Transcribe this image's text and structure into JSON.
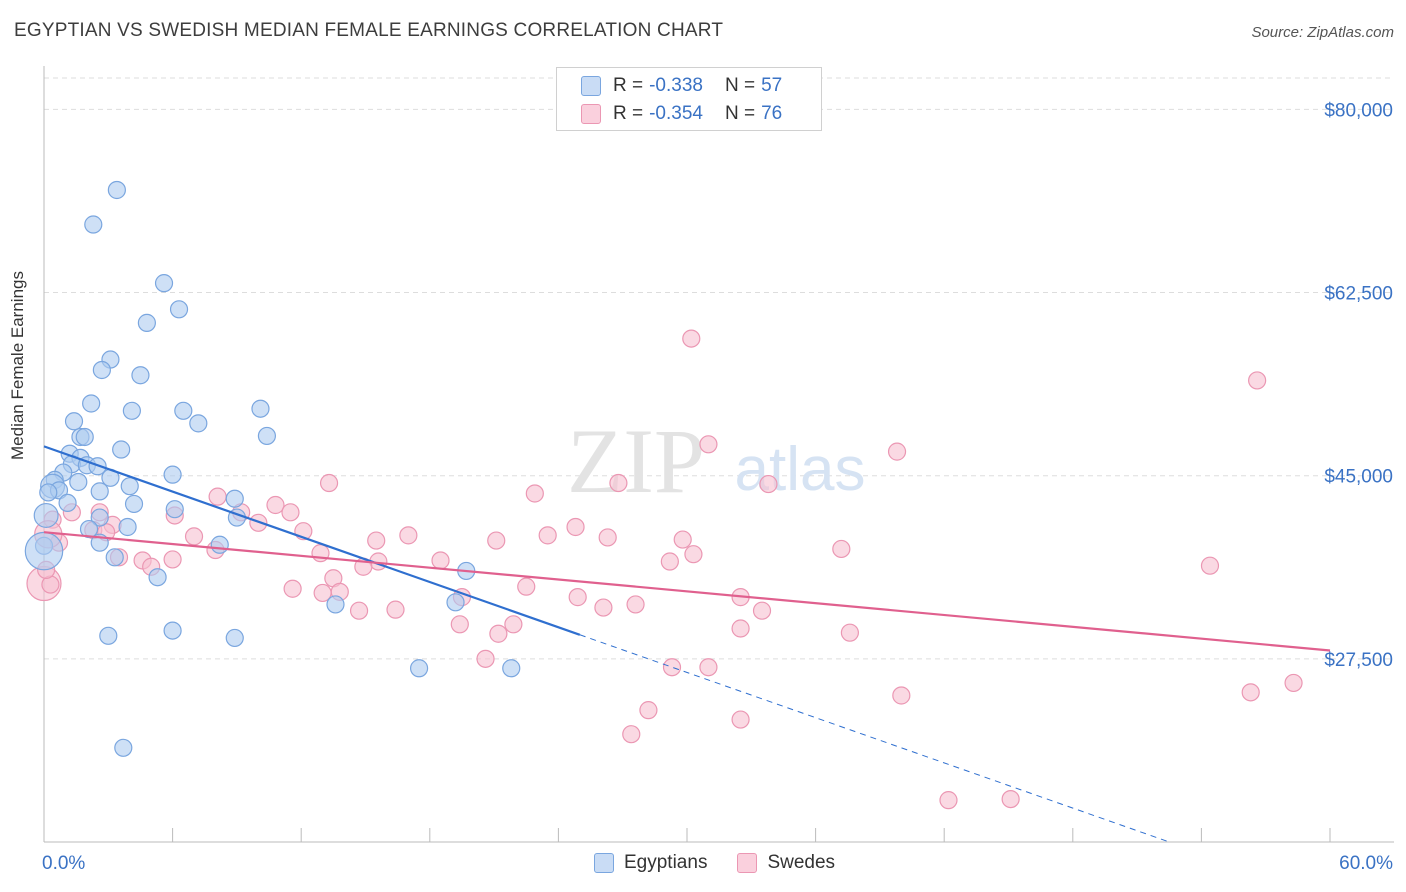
{
  "header": {
    "title": "EGYPTIAN VS SWEDISH MEDIAN FEMALE EARNINGS CORRELATION CHART",
    "source": "Source: ZipAtlas.com"
  },
  "colors": {
    "egyptians_fill": "#aecbf0",
    "egyptians_stroke": "#7aa6df",
    "egyptians_line": "#2f6fcf",
    "swedes_fill": "#f7bfd0",
    "swedes_stroke": "#eb97b3",
    "swedes_line": "#e0608e",
    "axis_text": "#3a72c4",
    "grid": "#dddddd"
  },
  "legend": {
    "egyptians": {
      "r_label": "R =",
      "r_value": "-0.338",
      "n_label": "N =",
      "n_value": "57"
    },
    "swedes": {
      "r_label": "R =",
      "r_value": "-0.354",
      "n_label": "N =",
      "n_value": "76"
    }
  },
  "bottom_legend": {
    "egyptians": "Egyptians",
    "swedes": "Swedes"
  },
  "watermark": {
    "zip": "ZIP",
    "atlas": "atlas"
  },
  "chart_data": {
    "type": "scatter",
    "title": "EGYPTIAN VS SWEDISH MEDIAN FEMALE EARNINGS CORRELATION CHART",
    "xlabel": "",
    "ylabel": "Median Female Earnings",
    "xlim": [
      0,
      60
    ],
    "ylim": [
      10000,
      83000
    ],
    "x_tick_labels": {
      "left": "0.0%",
      "right": "60.0%"
    },
    "y_ticks": [
      {
        "value": 80000,
        "label": "$80,000"
      },
      {
        "value": 62500,
        "label": "$62,500"
      },
      {
        "value": 45000,
        "label": "$45,000"
      },
      {
        "value": 27500,
        "label": "$27,500"
      }
    ],
    "grid": true,
    "legend_position": "top-center",
    "series": [
      {
        "name": "Egyptians",
        "r": -0.338,
        "n": 57,
        "trend": {
          "x0": 0,
          "y0": 47800,
          "x1": 25,
          "y1": 29800,
          "dashed_to_x": 60
        },
        "points": [
          [
            3.4,
            72300
          ],
          [
            2.3,
            69000
          ],
          [
            5.6,
            63400
          ],
          [
            6.3,
            60900
          ],
          [
            4.8,
            59600
          ],
          [
            3.1,
            56100
          ],
          [
            2.7,
            55100
          ],
          [
            4.5,
            54600
          ],
          [
            2.2,
            51900
          ],
          [
            4.1,
            51200
          ],
          [
            6.5,
            51200
          ],
          [
            10.1,
            51400
          ],
          [
            1.4,
            50200
          ],
          [
            7.2,
            50000
          ],
          [
            1.7,
            48700
          ],
          [
            1.9,
            48700
          ],
          [
            10.4,
            48800
          ],
          [
            3.6,
            47500
          ],
          [
            1.2,
            47100
          ],
          [
            1.7,
            46700
          ],
          [
            1.3,
            46100
          ],
          [
            2.0,
            46000
          ],
          [
            2.5,
            45900
          ],
          [
            0.9,
            45300
          ],
          [
            6.0,
            45100
          ],
          [
            0.5,
            44600
          ],
          [
            3.1,
            44800
          ],
          [
            1.6,
            44400
          ],
          [
            0.4,
            44000
          ],
          [
            4.0,
            44000
          ],
          [
            0.7,
            43600
          ],
          [
            2.6,
            43500
          ],
          [
            0.2,
            43400
          ],
          [
            8.9,
            42800
          ],
          [
            1.1,
            42400
          ],
          [
            4.2,
            42300
          ],
          [
            6.1,
            41800
          ],
          [
            0.1,
            41200
          ],
          [
            2.6,
            41000
          ],
          [
            9.0,
            41000
          ],
          [
            3.9,
            40100
          ],
          [
            2.1,
            39900
          ],
          [
            0.0,
            38300
          ],
          [
            2.6,
            38600
          ],
          [
            8.2,
            38400
          ],
          [
            3.3,
            37200
          ],
          [
            5.3,
            35300
          ],
          [
            19.7,
            35900
          ],
          [
            13.6,
            32700
          ],
          [
            19.2,
            32900
          ],
          [
            6.0,
            30200
          ],
          [
            3.0,
            29700
          ],
          [
            8.9,
            29500
          ],
          [
            17.5,
            26600
          ],
          [
            21.8,
            26600
          ],
          [
            3.7,
            19000
          ],
          [
            0.0,
            37800
          ]
        ],
        "sizes": {
          "default": 1,
          "big": [
            [
              0.0,
              37800,
              2.2
            ],
            [
              0.1,
              41200,
              1.4
            ],
            [
              0.4,
              44000,
              1.4
            ]
          ]
        }
      },
      {
        "name": "Swedes",
        "r": -0.354,
        "n": 76,
        "trend": {
          "x0": 0,
          "y0": 39600,
          "x1": 60,
          "y1": 28300
        },
        "points": [
          [
            30.2,
            58100
          ],
          [
            56.6,
            54100
          ],
          [
            31.0,
            48000
          ],
          [
            39.8,
            47300
          ],
          [
            13.3,
            44300
          ],
          [
            26.8,
            44300
          ],
          [
            33.8,
            44200
          ],
          [
            22.9,
            43300
          ],
          [
            8.1,
            43000
          ],
          [
            10.8,
            42200
          ],
          [
            1.3,
            41500
          ],
          [
            2.6,
            41500
          ],
          [
            9.2,
            41500
          ],
          [
            11.5,
            41500
          ],
          [
            6.1,
            41200
          ],
          [
            10.0,
            40500
          ],
          [
            3.2,
            40300
          ],
          [
            24.8,
            40100
          ],
          [
            2.3,
            39800
          ],
          [
            12.1,
            39700
          ],
          [
            2.9,
            39600
          ],
          [
            17.0,
            39300
          ],
          [
            23.5,
            39300
          ],
          [
            7.0,
            39200
          ],
          [
            26.3,
            39100
          ],
          [
            29.8,
            38900
          ],
          [
            15.5,
            38800
          ],
          [
            21.1,
            38800
          ],
          [
            0.7,
            38600
          ],
          [
            8.0,
            37900
          ],
          [
            12.9,
            37600
          ],
          [
            37.2,
            38000
          ],
          [
            3.5,
            37200
          ],
          [
            6.0,
            37000
          ],
          [
            4.6,
            36900
          ],
          [
            15.6,
            36800
          ],
          [
            30.3,
            37500
          ],
          [
            29.2,
            36800
          ],
          [
            18.5,
            36900
          ],
          [
            14.9,
            36300
          ],
          [
            5.0,
            36300
          ],
          [
            54.4,
            36400
          ],
          [
            0.0,
            34700
          ],
          [
            13.5,
            35200
          ],
          [
            22.5,
            34400
          ],
          [
            11.6,
            34200
          ],
          [
            13.0,
            33800
          ],
          [
            13.8,
            33900
          ],
          [
            24.9,
            33400
          ],
          [
            19.5,
            33400
          ],
          [
            27.6,
            32700
          ],
          [
            32.5,
            33400
          ],
          [
            26.1,
            32400
          ],
          [
            14.7,
            32100
          ],
          [
            16.4,
            32200
          ],
          [
            33.5,
            32100
          ],
          [
            19.4,
            30800
          ],
          [
            32.5,
            30400
          ],
          [
            37.6,
            30000
          ],
          [
            21.9,
            30800
          ],
          [
            21.2,
            29900
          ],
          [
            20.6,
            27500
          ],
          [
            29.3,
            26700
          ],
          [
            31.0,
            26700
          ],
          [
            58.3,
            25200
          ],
          [
            40.0,
            24000
          ],
          [
            56.3,
            24300
          ],
          [
            28.2,
            22600
          ],
          [
            32.5,
            21700
          ],
          [
            27.4,
            20300
          ],
          [
            42.2,
            14000
          ],
          [
            45.1,
            14100
          ],
          [
            0.4,
            40800
          ],
          [
            0.2,
            39400
          ],
          [
            0.3,
            34600
          ],
          [
            0.1,
            36000
          ]
        ],
        "sizes": {
          "default": 1,
          "big": [
            [
              0.0,
              34700,
              2.0
            ],
            [
              0.2,
              39400,
              1.6
            ]
          ]
        }
      }
    ]
  }
}
